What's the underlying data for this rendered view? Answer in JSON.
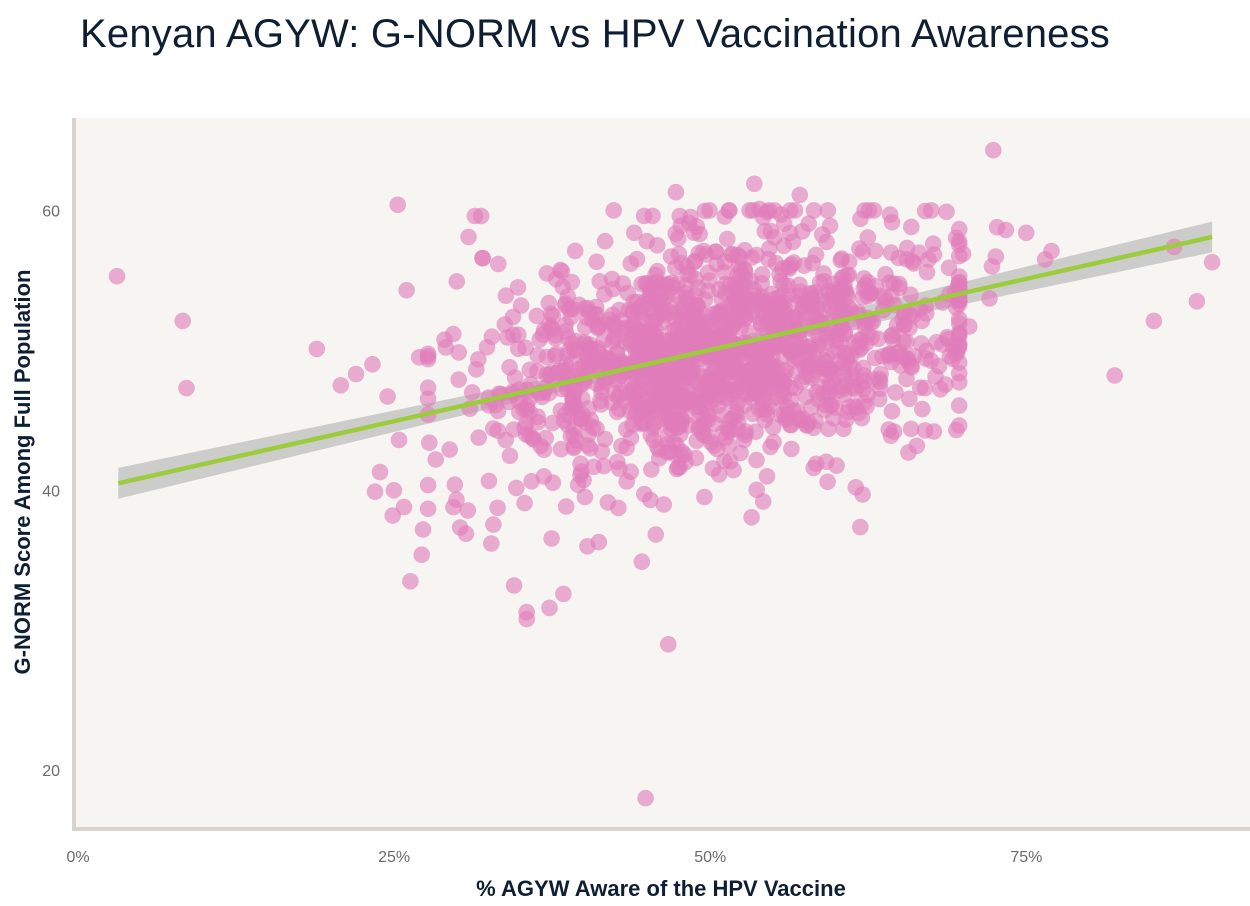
{
  "title": "Kenyan AGYW: G-NORM vs HPV Vaccination Awareness",
  "colors": {
    "background": "#f6f5f1",
    "point": "#e07cba",
    "trend": "#9ccc3c",
    "band": "#bdbdbd",
    "axis": "#d8d3cc"
  },
  "chart_data": {
    "type": "scatter",
    "title": "Kenyan AGYW: G-NORM vs HPV Vaccination Awareness",
    "xlabel": "% AGYW Aware of the HPV Vaccine",
    "ylabel": "G-NORM Score Among Full Population",
    "x_unit": "percent",
    "xlim": [
      0,
      93
    ],
    "ylim": [
      15.8,
      66.6
    ],
    "x_ticks": [
      0,
      25,
      50,
      75
    ],
    "x_tick_labels": [
      "0%",
      "25%",
      "50%",
      "75%"
    ],
    "y_ticks": [
      20,
      40,
      60
    ],
    "y_tick_labels": [
      "20",
      "40",
      "60"
    ],
    "grid": false,
    "legend": "none",
    "trend_line": {
      "method": "linear fit with confidence band",
      "x": [
        3.5,
        90
      ],
      "y": [
        40.5,
        58.1
      ],
      "band_half_width_at_ends": 1.1
    },
    "highlighted_points": [
      {
        "x": 3.4,
        "y": 55.3
      },
      {
        "x": 8.6,
        "y": 52.1
      },
      {
        "x": 8.9,
        "y": 47.3
      },
      {
        "x": 19.2,
        "y": 50.1
      },
      {
        "x": 21.1,
        "y": 47.5
      },
      {
        "x": 22.3,
        "y": 48.3
      },
      {
        "x": 23.6,
        "y": 49.0
      },
      {
        "x": 23.8,
        "y": 39.9
      },
      {
        "x": 24.2,
        "y": 41.3
      },
      {
        "x": 24.8,
        "y": 46.7
      },
      {
        "x": 25.2,
        "y": 38.2
      },
      {
        "x": 25.3,
        "y": 40.0
      },
      {
        "x": 25.6,
        "y": 60.4
      },
      {
        "x": 25.7,
        "y": 43.6
      },
      {
        "x": 26.1,
        "y": 38.8
      },
      {
        "x": 26.3,
        "y": 54.3
      },
      {
        "x": 26.6,
        "y": 33.5
      },
      {
        "x": 27.3,
        "y": 49.5
      },
      {
        "x": 27.5,
        "y": 35.4
      },
      {
        "x": 27.6,
        "y": 37.2
      },
      {
        "x": 28.1,
        "y": 43.4
      },
      {
        "x": 28.6,
        "y": 42.2
      },
      {
        "x": 29.4,
        "y": 50.2
      },
      {
        "x": 30.0,
        "y": 38.8
      },
      {
        "x": 31.0,
        "y": 36.9
      },
      {
        "x": 31.2,
        "y": 58.1
      },
      {
        "x": 31.7,
        "y": 59.6
      },
      {
        "x": 32.2,
        "y": 59.6
      },
      {
        "x": 32.3,
        "y": 56.6
      },
      {
        "x": 33.0,
        "y": 36.2
      },
      {
        "x": 34.8,
        "y": 33.2
      },
      {
        "x": 35.8,
        "y": 31.3
      },
      {
        "x": 35.8,
        "y": 30.8
      },
      {
        "x": 37.4,
        "y": 55.5
      },
      {
        "x": 37.6,
        "y": 31.6
      },
      {
        "x": 38.7,
        "y": 32.6
      },
      {
        "x": 41.5,
        "y": 36.3
      },
      {
        "x": 42.0,
        "y": 57.8
      },
      {
        "x": 44.3,
        "y": 58.4
      },
      {
        "x": 44.9,
        "y": 34.9
      },
      {
        "x": 45.3,
        "y": 57.8
      },
      {
        "x": 45.2,
        "y": 18.0
      },
      {
        "x": 47.0,
        "y": 29.0
      },
      {
        "x": 47.6,
        "y": 61.3
      },
      {
        "x": 47.9,
        "y": 59.6
      },
      {
        "x": 53.8,
        "y": 61.9
      },
      {
        "x": 54.2,
        "y": 60.1
      },
      {
        "x": 54.5,
        "y": 59.5
      },
      {
        "x": 54.5,
        "y": 39.2
      },
      {
        "x": 54.8,
        "y": 41.0
      },
      {
        "x": 57.4,
        "y": 61.1
      },
      {
        "x": 58.5,
        "y": 41.6
      },
      {
        "x": 62.2,
        "y": 59.4
      },
      {
        "x": 64.6,
        "y": 43.9
      },
      {
        "x": 66.2,
        "y": 48.9
      },
      {
        "x": 67.3,
        "y": 47.3
      },
      {
        "x": 67.8,
        "y": 60.0
      },
      {
        "x": 68.0,
        "y": 44.2
      },
      {
        "x": 69.0,
        "y": 59.9
      },
      {
        "x": 69.2,
        "y": 55.9
      },
      {
        "x": 69.5,
        "y": 50.3
      },
      {
        "x": 70.3,
        "y": 56.9
      },
      {
        "x": 70.8,
        "y": 51.7
      },
      {
        "x": 72.4,
        "y": 53.7
      },
      {
        "x": 72.6,
        "y": 56.0
      },
      {
        "x": 72.7,
        "y": 64.3
      },
      {
        "x": 72.9,
        "y": 56.7
      },
      {
        "x": 73.0,
        "y": 58.8
      },
      {
        "x": 73.7,
        "y": 58.6
      },
      {
        "x": 75.3,
        "y": 58.4
      },
      {
        "x": 76.8,
        "y": 56.5
      },
      {
        "x": 77.3,
        "y": 57.1
      },
      {
        "x": 82.3,
        "y": 48.2
      },
      {
        "x": 85.4,
        "y": 52.1
      },
      {
        "x": 87.0,
        "y": 57.4
      },
      {
        "x": 88.8,
        "y": 53.5
      },
      {
        "x": 90.0,
        "y": 56.3
      }
    ],
    "bulk_point_distribution": {
      "n_points": 1500,
      "x_mean": 51,
      "x_sd": 9,
      "y_mean": 50,
      "y_sd": 4.2,
      "correlation": 0.3,
      "x_range": [
        28,
        70
      ],
      "y_range": [
        36,
        60
      ]
    }
  }
}
